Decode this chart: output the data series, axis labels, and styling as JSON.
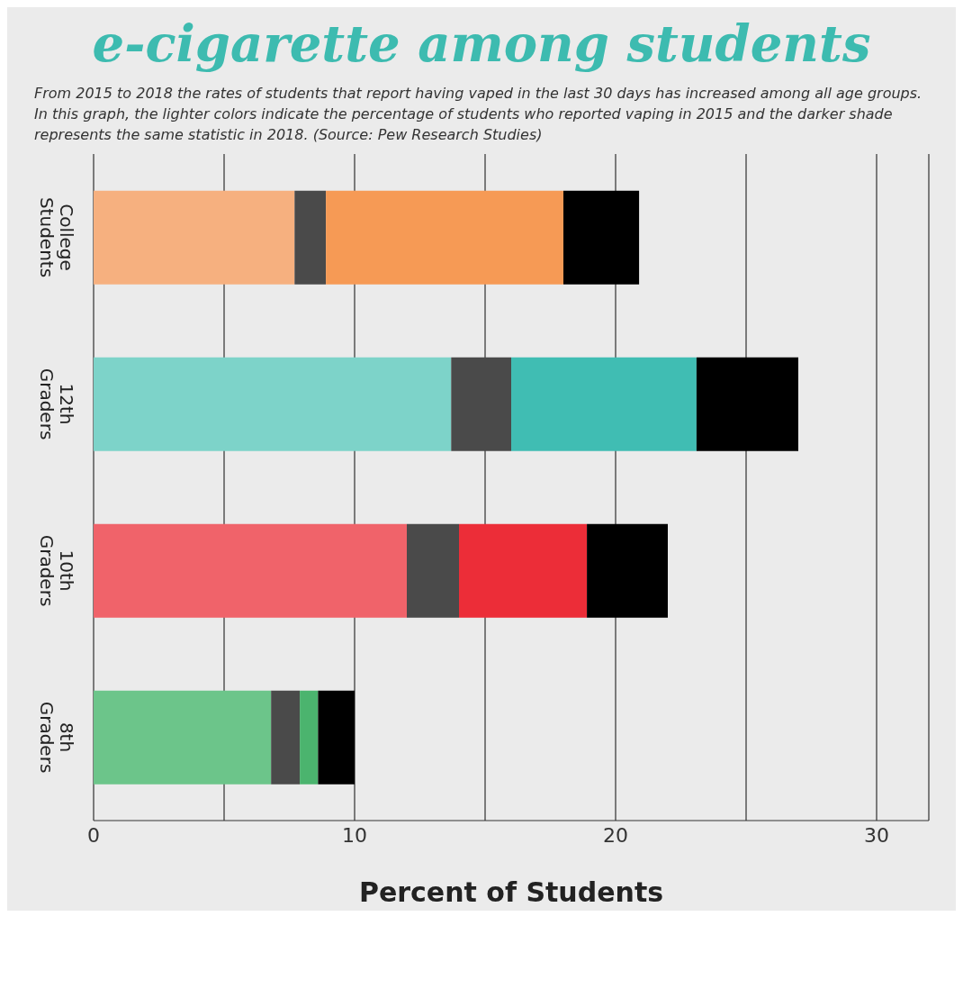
{
  "chart_data": {
    "type": "bar",
    "orientation": "horizontal",
    "stacked": true,
    "title": "e-cigarette among students",
    "subtitle": "From 2015 to 2018 the rates of students that report having vaped in the last 30 days has increased among all age groups. In this graph, the lighter colors indicate the percentage of students who reported vaping in 2015 and the darker shade represents the same statistic in 2018. (Source: Pew Research Studies)",
    "xlabel": "Percent of Students",
    "categories": [
      "College Students",
      "12th Graders",
      "10th Graders",
      "8th Graders"
    ],
    "series": [
      {
        "colors": [
          "#f6b07f",
          "#7dd3c9",
          "#f0636a",
          "#6cc58a"
        ],
        "values": [
          7.7,
          13.7,
          12.0,
          6.8
        ]
      },
      {
        "color": "#4a4a4a",
        "values": [
          1.2,
          2.3,
          2.0,
          1.1
        ]
      },
      {
        "colors": [
          "#f69a55",
          "#40bdb3",
          "#ec2d38",
          "#4bb46e"
        ],
        "values": [
          9.1,
          7.1,
          4.9,
          0.7
        ]
      },
      {
        "color": "#000000",
        "values": [
          2.9,
          3.9,
          3.1,
          1.4
        ]
      }
    ],
    "xlim": [
      0,
      32
    ],
    "xticks": [
      0,
      {
        "value": 5,
        "label": null
      },
      10,
      {
        "value": 15,
        "label": null
      },
      20,
      {
        "value": 25,
        "label": null
      },
      30
    ],
    "grid": "x",
    "legend": false
  }
}
